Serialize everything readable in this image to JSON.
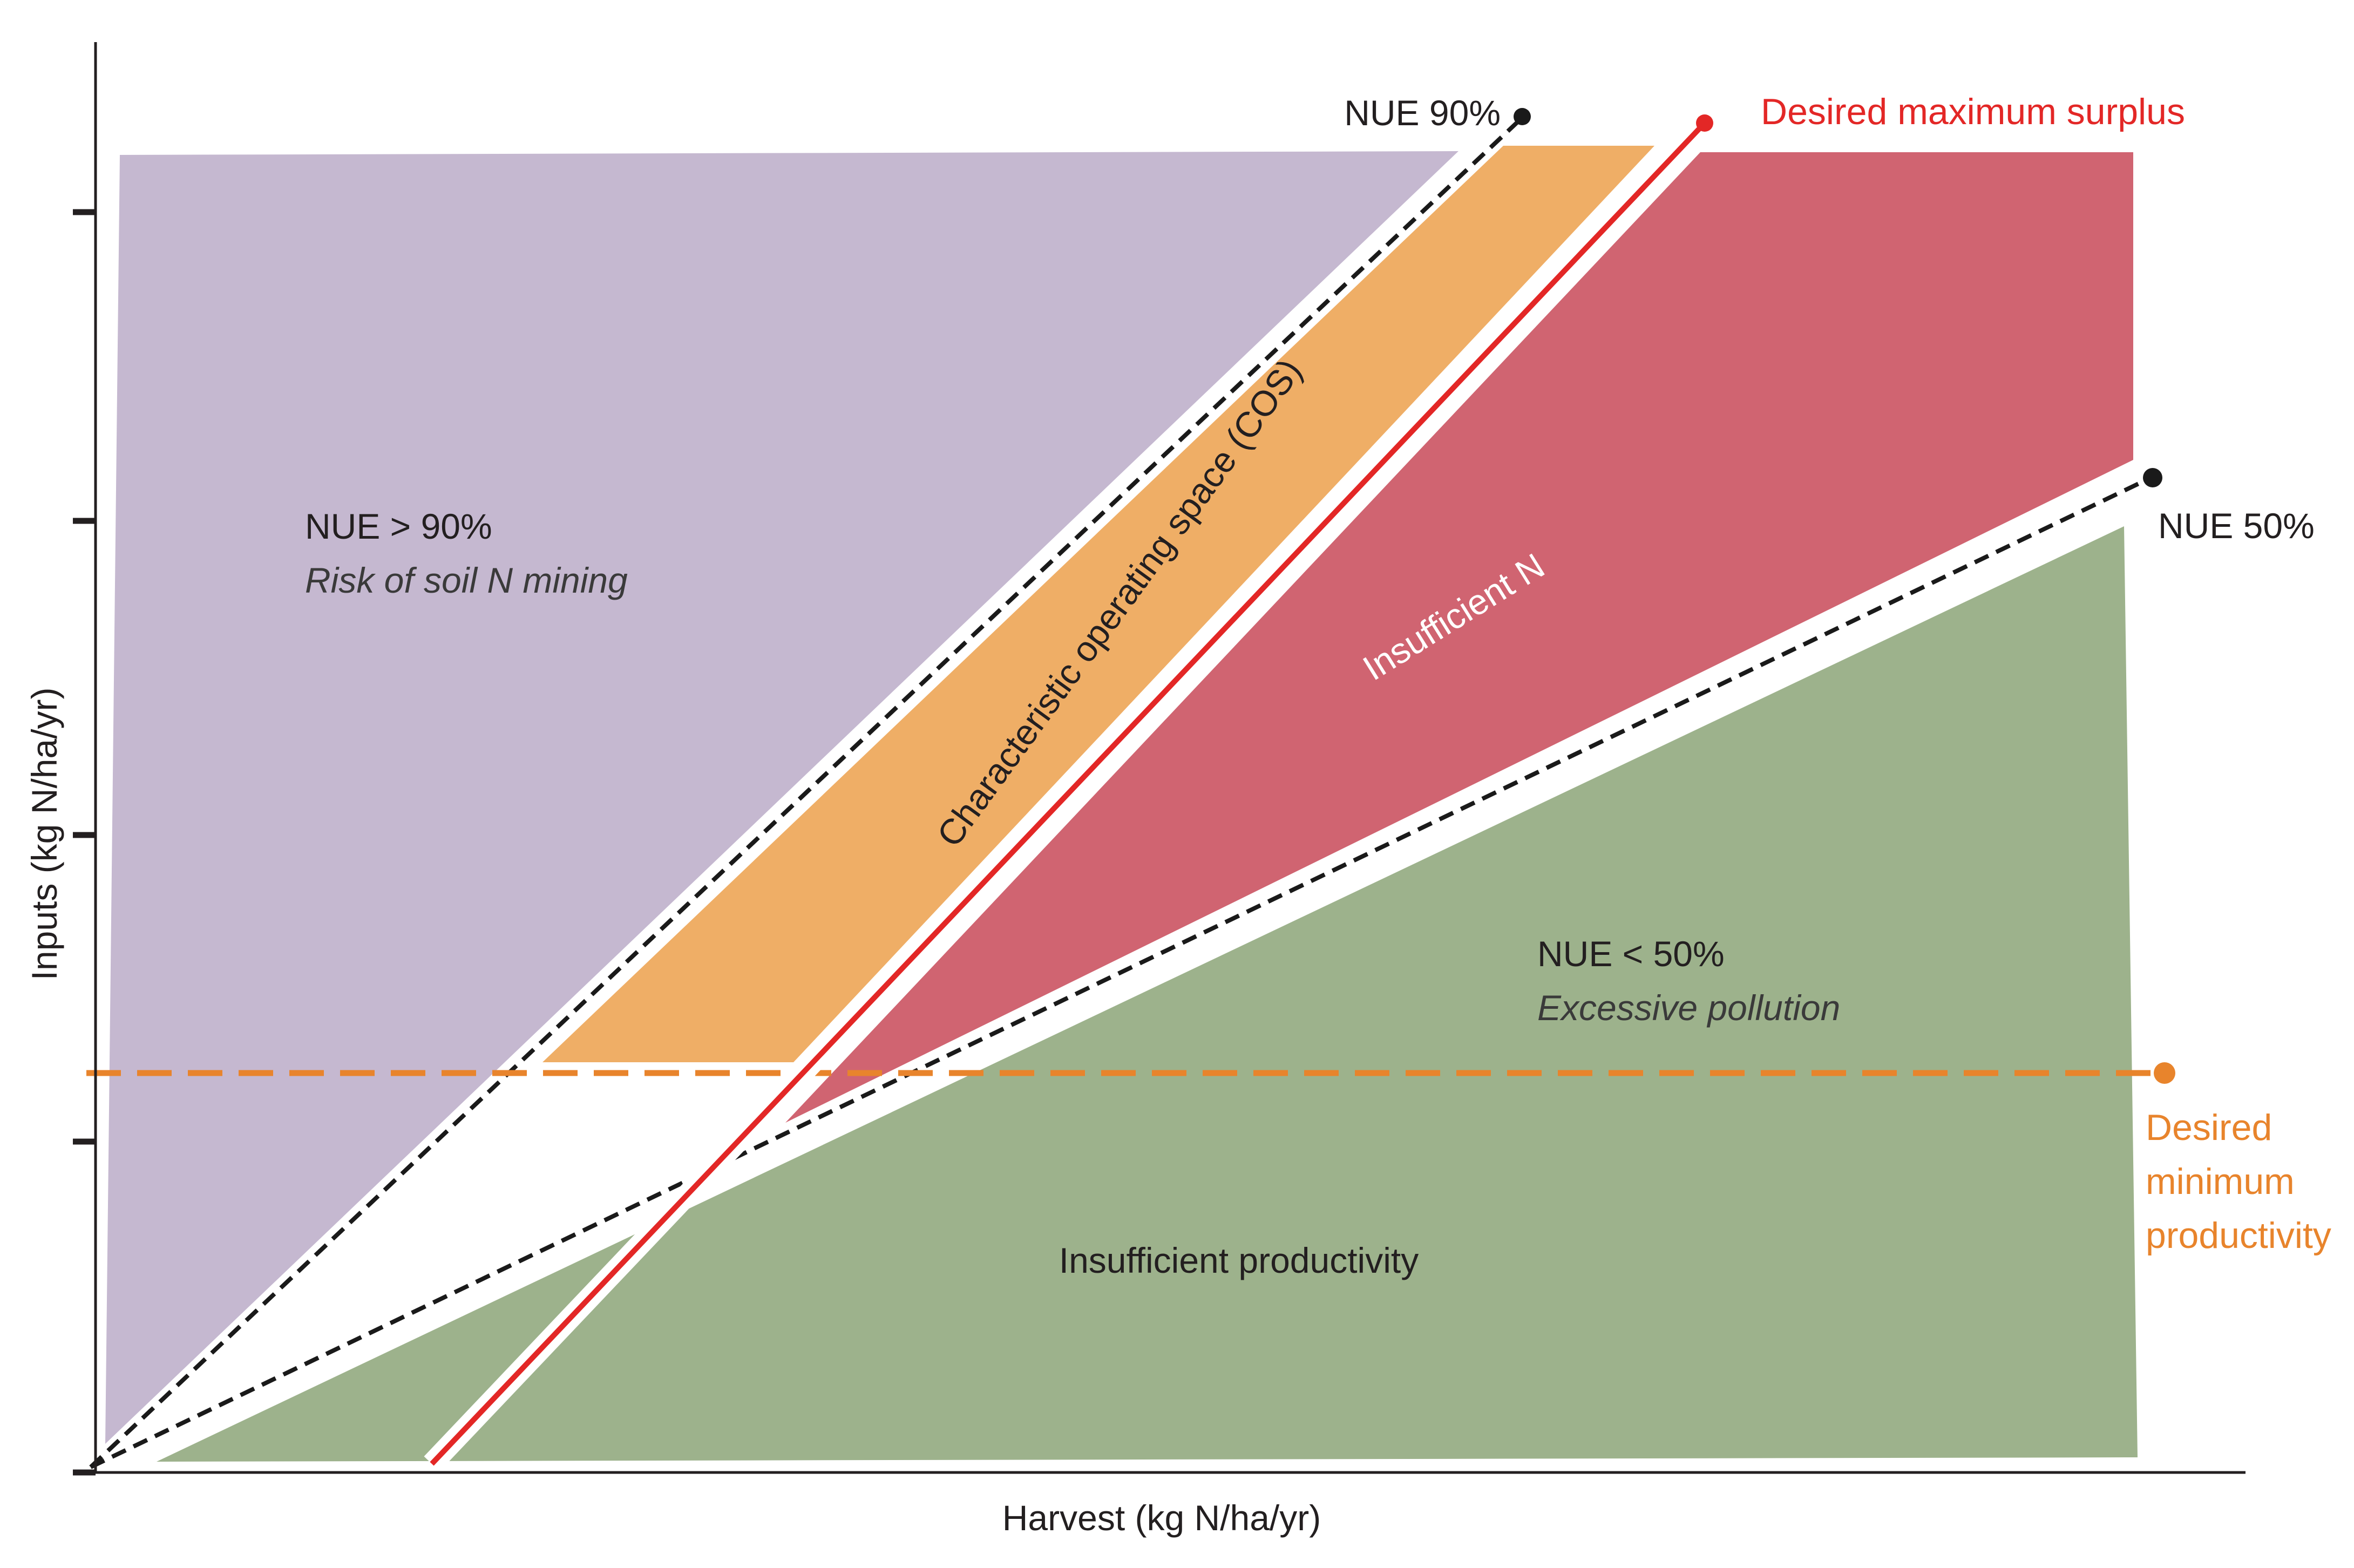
{
  "axes": {
    "x_label": "Harvest (kg N/ha/yr)",
    "y_label": "Inputs  (kg N/ha/yr)"
  },
  "regions": {
    "mining": {
      "title": "NUE > 90%",
      "subtitle": "Risk of soil N mining",
      "color": "#c5b8d0"
    },
    "cos": {
      "label": "Characteristic operating space (COS)",
      "color": "#efae66"
    },
    "insufficient_n": {
      "label": "Insufficient N",
      "color": "#d06471"
    },
    "pollution": {
      "title": "NUE < 50%",
      "subtitle": "Excessive pollution",
      "color": "#9db28c"
    },
    "productivity": {
      "label": "Insufficient productivity"
    }
  },
  "lines": {
    "nue90": {
      "label": "NUE 90%",
      "color": "#1a1a1a"
    },
    "nue50": {
      "label": "NUE 50%",
      "color": "#1a1a1a"
    },
    "max_surplus": {
      "label": "Desired maximum surplus",
      "color": "#e32726"
    },
    "min_productivity": {
      "label_lines": [
        "Desired",
        "minimum",
        "productivity"
      ],
      "color": "#e8842c"
    }
  }
}
